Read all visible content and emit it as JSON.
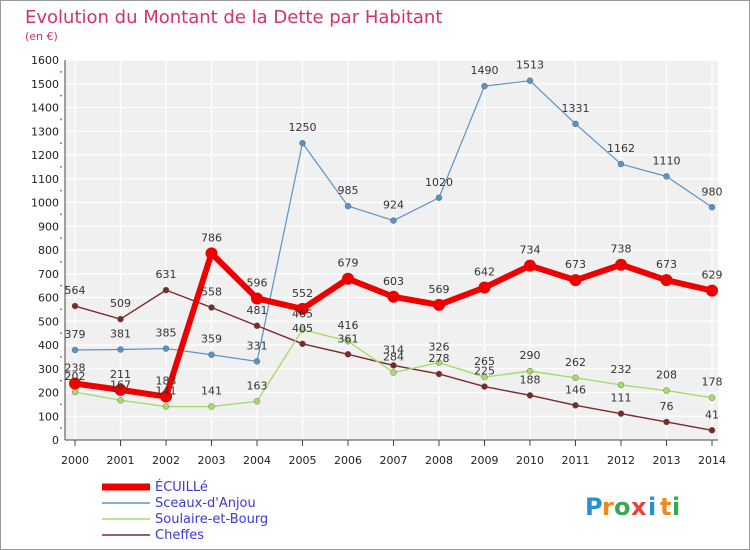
{
  "chart_data": {
    "type": "line",
    "title": "Evolution du Montant de la Dette par Habitant",
    "subtitle": "(en €)",
    "x": [
      "2000",
      "2001",
      "2002",
      "2003",
      "2004",
      "2005",
      "2006",
      "2007",
      "2008",
      "2009",
      "2010",
      "2011",
      "2012",
      "2013",
      "2014"
    ],
    "ylim": [
      0,
      1600
    ],
    "yticks": [
      0,
      100,
      200,
      300,
      400,
      500,
      600,
      700,
      800,
      900,
      1000,
      1100,
      1200,
      1300,
      1400,
      1500,
      1600
    ],
    "grid": true,
    "legend": "bottom",
    "series": [
      {
        "name": "ÉCUILLé",
        "color": "#ee0000",
        "values": [
          238,
          211,
          183,
          786,
          596,
          552,
          679,
          603,
          569,
          642,
          734,
          673,
          738,
          673,
          629
        ]
      },
      {
        "name": "Sceaux-d'Anjou",
        "color": "#5a93c8",
        "values": [
          379,
          381,
          385,
          359,
          331,
          1250,
          985,
          924,
          1020,
          1490,
          1513,
          1331,
          1162,
          1110,
          980
        ]
      },
      {
        "name": "Soulaire-et-Bourg",
        "color": "#a6dc6c",
        "values": [
          202,
          167,
          141,
          141,
          163,
          465,
          416,
          284,
          326,
          265,
          290,
          262,
          232,
          208,
          178
        ]
      },
      {
        "name": "Cheffes",
        "color": "#7a2a2a",
        "values": [
          564,
          509,
          631,
          558,
          481,
          405,
          361,
          314,
          278,
          225,
          188,
          146,
          111,
          76,
          41
        ]
      }
    ]
  },
  "brand": {
    "letters": [
      "P",
      "r",
      "o",
      "x",
      "i",
      "t",
      "i"
    ],
    "colors": [
      "#2b8fd6",
      "#f08a1c",
      "#34a853",
      "#e8413c",
      "#2b8fd6",
      "#f08a1c",
      "#34a853"
    ]
  }
}
